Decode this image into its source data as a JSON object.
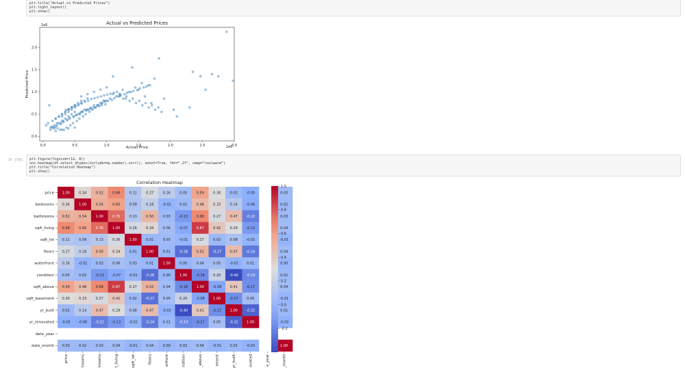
{
  "cell_top": {
    "lines": [
      "plt.title(\"Actual vs Predicted Prices\")",
      "plt.tight_layout()",
      "plt.show()"
    ]
  },
  "cell_bottom": {
    "prompt": "In [59]:",
    "lines": [
      "plt.figure(figsize=(12, 8))",
      "sns.heatmap(df.select_dtypes(include=np.number).corr(), annot=True, fmt=\".2f\", cmap=\"coolwarm\")",
      "plt.title(\"Correlation Heatmap\")",
      "plt.show()"
    ]
  },
  "colors": {
    "point": "#4c8cbf",
    "cell_bg": "#f7f7f7"
  },
  "chart_data": [
    {
      "type": "scatter",
      "title": "Actual vs Predicted Prices",
      "xlabel": "Actual Price",
      "ylabel": "Predicted Price",
      "x_offset_label": "1e6",
      "y_offset_label": "1e6",
      "xlim": [
        -0.05,
        3.0
      ],
      "ylim": [
        -0.1,
        2.45
      ],
      "xticks": [
        0.0,
        0.5,
        1.0,
        1.5,
        2.0,
        2.5,
        3.0
      ],
      "xtick_labels": [
        "0.0",
        "0.5",
        "1.0",
        "1.5",
        "2.0",
        "2.5",
        "3.0"
      ],
      "yticks": [
        0.0,
        0.5,
        1.0,
        1.5,
        2.0
      ],
      "ytick_labels": [
        "0.0",
        "0.5",
        "1.0",
        "1.5",
        "2.0"
      ],
      "x": [
        2.88,
        1.82,
        1.4,
        2.35,
        2.65,
        2.47,
        2.75,
        2.98,
        2.55,
        2.1,
        2.3,
        1.6,
        1.7,
        1.9,
        2.05,
        1.65,
        1.55,
        1.5,
        1.35,
        1.2,
        1.75,
        1.45,
        1.25,
        1.1,
        0.08,
        0.05,
        0.1,
        0.12,
        0.15,
        0.2,
        0.25,
        0.3,
        0.35,
        0.4,
        0.45,
        0.5,
        0.55,
        0.6,
        0.65,
        0.7,
        0.75,
        0.8,
        0.85,
        0.9,
        0.95,
        1.0,
        1.05,
        1.15,
        0.18,
        0.22,
        0.28,
        0.32,
        0.38,
        0.42,
        0.48,
        0.52,
        0.58,
        0.62,
        0.68,
        0.72,
        0.78,
        0.82,
        0.88,
        0.92,
        0.98,
        0.3,
        0.35,
        0.4,
        0.45,
        0.5,
        0.55,
        0.6,
        0.65,
        0.7,
        0.2,
        0.25,
        0.3,
        0.35,
        0.4,
        0.45,
        0.5,
        0.55,
        0.6,
        0.15,
        0.2,
        0.25,
        0.3,
        0.35,
        0.4,
        0.45,
        0.5,
        0.12,
        0.18,
        0.22,
        0.28,
        0.32,
        0.38,
        0.42,
        0.48,
        0.52,
        0.58,
        0.62,
        0.68,
        0.74,
        0.8,
        0.86,
        0.92,
        0.97,
        1.02,
        1.08,
        1.12,
        1.18,
        1.22,
        1.28,
        1.32,
        1.38,
        1.42,
        1.48,
        1.52,
        1.58,
        1.62,
        1.68,
        0.33,
        0.37,
        0.43,
        0.47,
        0.53,
        0.57,
        0.63,
        0.67,
        0.73,
        0.77,
        0.83,
        0.87,
        0.93,
        0.97,
        0.27,
        0.23,
        0.17,
        0.14,
        0.36,
        0.41,
        0.46,
        0.51,
        0.56,
        0.61,
        0.66,
        0.71,
        0.76,
        0.81,
        0.86,
        0.91,
        0.96,
        1.01,
        1.06,
        1.11,
        1.16,
        1.21,
        1.26,
        1.31,
        1.36,
        1.41,
        1.46,
        1.51,
        1.56,
        1.61,
        1.66,
        1.71,
        1.76,
        1.81,
        1.86,
        0.6,
        0.7,
        0.8,
        0.9,
        1.0,
        1.1,
        1.2,
        1.3,
        0.5,
        0.4,
        0.3,
        0.2
      ],
      "y": [
        2.35,
        1.75,
        1.55,
        1.45,
        1.4,
        1.35,
        1.35,
        1.25,
        1.05,
        0.45,
        0.65,
        0.9,
        0.75,
        0.85,
        0.6,
        1.15,
        1.2,
        1.05,
        1.0,
        0.95,
        1.3,
        1.1,
        1.05,
        1.35,
        0.3,
        0.25,
        0.7,
        0.15,
        0.2,
        0.22,
        0.3,
        0.35,
        0.4,
        0.45,
        0.5,
        0.55,
        0.5,
        0.55,
        0.6,
        0.6,
        0.65,
        0.7,
        0.7,
        0.75,
        0.8,
        0.8,
        0.85,
        0.9,
        0.25,
        0.3,
        0.28,
        0.35,
        0.38,
        0.42,
        0.45,
        0.48,
        0.5,
        0.55,
        0.58,
        0.6,
        0.62,
        0.65,
        0.68,
        0.7,
        0.72,
        0.45,
        0.5,
        0.55,
        0.6,
        0.65,
        0.7,
        0.75,
        0.8,
        0.85,
        0.4,
        0.45,
        0.5,
        0.55,
        0.6,
        0.65,
        0.7,
        0.75,
        0.8,
        0.35,
        0.4,
        0.45,
        0.5,
        0.55,
        0.6,
        0.65,
        0.7,
        0.2,
        0.18,
        0.25,
        0.3,
        0.32,
        0.36,
        0.4,
        0.44,
        0.48,
        0.52,
        0.56,
        0.6,
        0.63,
        0.66,
        0.7,
        0.74,
        0.78,
        0.8,
        0.82,
        0.86,
        0.9,
        0.92,
        0.95,
        0.98,
        1.0,
        1.02,
        1.04,
        1.08,
        1.1,
        1.12,
        1.15,
        0.15,
        0.2,
        0.25,
        0.3,
        0.35,
        0.4,
        0.45,
        0.5,
        0.55,
        0.6,
        0.65,
        0.7,
        0.75,
        0.8,
        0.15,
        0.18,
        0.2,
        0.22,
        0.6,
        0.62,
        0.66,
        0.68,
        0.72,
        0.74,
        0.78,
        0.8,
        0.84,
        0.86,
        0.88,
        0.9,
        0.92,
        0.94,
        0.96,
        0.98,
        1.0,
        0.95,
        0.85,
        0.9,
        0.8,
        0.85,
        0.75,
        0.8,
        0.7,
        0.75,
        0.65,
        0.7,
        0.6,
        0.65,
        0.55,
        0.9,
        0.95,
        1.0,
        1.05,
        1.1,
        0.95,
        0.9,
        0.85,
        0.2,
        0.18,
        0.15,
        0.12
      ]
    },
    {
      "type": "heatmap",
      "title": "Correlation Heatmap",
      "row_labels": [
        "price",
        "bedrooms",
        "bathrooms",
        "sqft_living",
        "sqft_lot",
        "floors",
        "waterfront",
        "condition",
        "sqft_above",
        "sqft_basement",
        "yr_built",
        "yr_renovated",
        "date_year",
        "date_month"
      ],
      "col_labels": [
        "price",
        "bedrooms",
        "bathrooms",
        "sqft_living",
        "sqft_lot",
        "floors",
        "waterfront",
        "condition",
        "sqft_above",
        "sqft_basement",
        "yr_built",
        "yr_renovated",
        "date_year",
        "date_month"
      ],
      "col_tick_text": [
        "price",
        "trooms",
        "trooms",
        "t_living",
        "sqft_lot",
        "floors",
        "erfront",
        "ndition",
        "_above",
        "ement",
        "yr_built",
        "ovated",
        "e_year",
        "_month"
      ],
      "values": [
        [
          1.0,
          0.34,
          0.52,
          0.68,
          0.11,
          0.27,
          0.16,
          0.05,
          0.59,
          0.3,
          0.02,
          -0.05,
          null,
          0.03
        ],
        [
          0.34,
          1.0,
          0.54,
          0.6,
          0.09,
          0.18,
          -0.02,
          0.02,
          0.48,
          0.33,
          0.14,
          -0.06,
          null,
          0.02
        ],
        [
          0.52,
          0.54,
          1.0,
          0.76,
          0.13,
          0.5,
          0.03,
          -0.13,
          0.68,
          0.27,
          0.47,
          -0.22,
          null,
          0.03
        ],
        [
          0.68,
          0.6,
          0.76,
          1.0,
          0.26,
          0.34,
          0.06,
          -0.07,
          0.87,
          0.42,
          0.29,
          -0.13,
          null,
          0.04
        ],
        [
          0.11,
          0.09,
          0.13,
          0.26,
          1.0,
          0.01,
          0.03,
          -0.01,
          0.27,
          0.02,
          0.08,
          -0.02,
          null,
          -0.01
        ],
        [
          0.27,
          0.18,
          0.5,
          0.34,
          0.01,
          1.0,
          0.01,
          -0.28,
          0.52,
          -0.27,
          0.47,
          -0.24,
          null,
          0.04
        ],
        [
          0.16,
          -0.02,
          0.03,
          0.06,
          0.03,
          0.01,
          1.0,
          0.0,
          0.04,
          0.05,
          -0.03,
          0.01,
          null,
          -0.0
        ],
        [
          0.05,
          0.02,
          -0.13,
          -0.07,
          -0.01,
          -0.28,
          0.0,
          1.0,
          -0.18,
          0.2,
          -0.4,
          -0.19,
          null,
          0.02
        ],
        [
          0.59,
          0.48,
          0.68,
          0.87,
          0.27,
          0.52,
          0.04,
          -0.18,
          1.0,
          -0.08,
          0.41,
          -0.17,
          null,
          0.04
        ],
        [
          0.3,
          0.33,
          0.27,
          0.42,
          0.02,
          -0.27,
          0.05,
          0.2,
          -0.08,
          1.0,
          -0.17,
          0.05,
          null,
          -0.01
        ],
        [
          0.02,
          0.14,
          0.47,
          0.29,
          0.08,
          0.47,
          -0.03,
          -0.4,
          0.41,
          -0.17,
          1.0,
          -0.32,
          null,
          0.01
        ],
        [
          -0.05,
          -0.06,
          -0.22,
          -0.13,
          -0.02,
          -0.24,
          0.01,
          -0.19,
          -0.17,
          0.05,
          -0.32,
          1.0,
          null,
          -0.03
        ],
        [
          null,
          null,
          null,
          null,
          null,
          null,
          null,
          null,
          null,
          null,
          null,
          null,
          null,
          null
        ],
        [
          0.03,
          0.02,
          0.03,
          0.04,
          -0.01,
          0.04,
          -0.0,
          0.02,
          0.04,
          -0.01,
          0.01,
          -0.03,
          null,
          1.0
        ]
      ],
      "colorbar_ticks": [
        1.0,
        0.8,
        0.6,
        0.4,
        0.2,
        0.0,
        -0.2
      ],
      "colorbar_tick_labels": [
        "1.0",
        "0.8",
        "0.6",
        "0.4",
        "0.2",
        "0.0",
        "-0.2"
      ],
      "vmin": -0.4,
      "vmax": 1.0,
      "cmap": "coolwarm"
    }
  ]
}
